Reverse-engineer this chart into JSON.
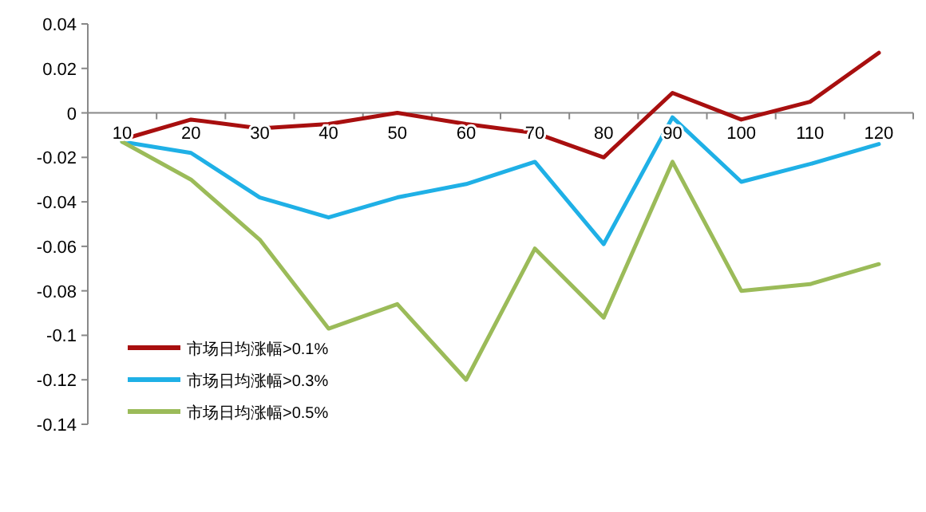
{
  "chart_data": {
    "type": "line",
    "categories": [
      "10",
      "20",
      "30",
      "40",
      "50",
      "60",
      "70",
      "80",
      "90",
      "100",
      "110",
      "120"
    ],
    "ylim": [
      -0.14,
      0.04
    ],
    "yticks": [
      -0.14,
      -0.12,
      {
        "value": -0.1,
        "label": "-0.1"
      },
      -0.08,
      -0.06,
      -0.04,
      -0.02,
      0,
      0.02,
      0.04
    ],
    "grid": false,
    "legend": "bottom left",
    "marker": "none",
    "line_style": "solid",
    "series": [
      {
        "name": "市场日均涨幅>0.1%",
        "color": "#a80f0f",
        "values": [
          -0.012,
          -0.003,
          -0.007,
          -0.005,
          0,
          -0.005,
          -0.009,
          -0.02,
          0.009,
          -0.003,
          0.005,
          0.027
        ]
      },
      {
        "name": "市场日均涨幅>0.3%",
        "color": "#1fb0e6",
        "values": [
          -0.013,
          -0.018,
          -0.038,
          -0.047,
          -0.038,
          -0.032,
          -0.022,
          -0.059,
          -0.002,
          -0.031,
          -0.023,
          -0.014
        ]
      },
      {
        "name": "市场日均涨幅>0.5%",
        "color": "#9bbb59",
        "values": [
          -0.013,
          -0.03,
          -0.057,
          -0.097,
          -0.086,
          -0.12,
          -0.061,
          -0.092,
          -0.022,
          -0.08,
          -0.077,
          -0.068
        ]
      }
    ]
  }
}
